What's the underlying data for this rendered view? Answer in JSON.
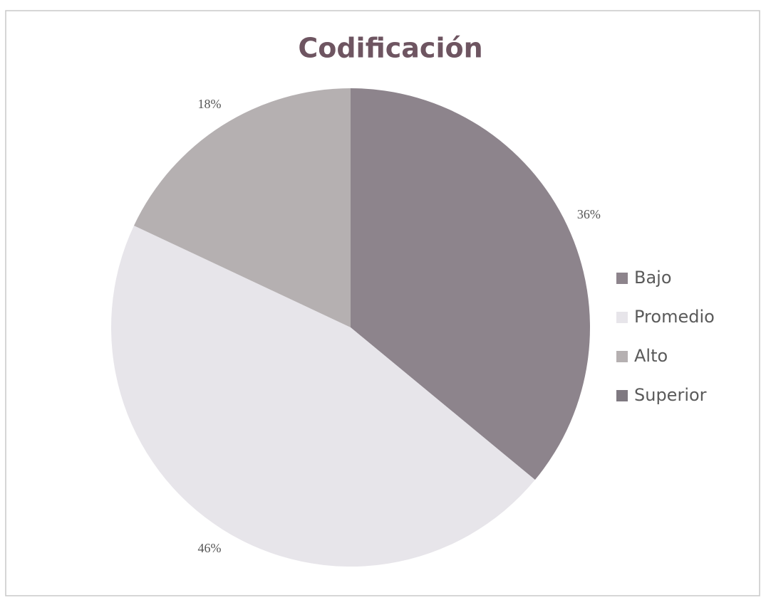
{
  "chart_data": {
    "type": "pie",
    "title": "Codificación",
    "categories": [
      "Bajo",
      "Promedio",
      "Alto",
      "Superior"
    ],
    "values": [
      36,
      46,
      18,
      0
    ],
    "value_labels": [
      "36%",
      "46%",
      "18%",
      null
    ],
    "colors": [
      "#8d848c",
      "#e7e5ea",
      "#b5b0b1",
      "#7f7981"
    ],
    "legend": "right"
  }
}
